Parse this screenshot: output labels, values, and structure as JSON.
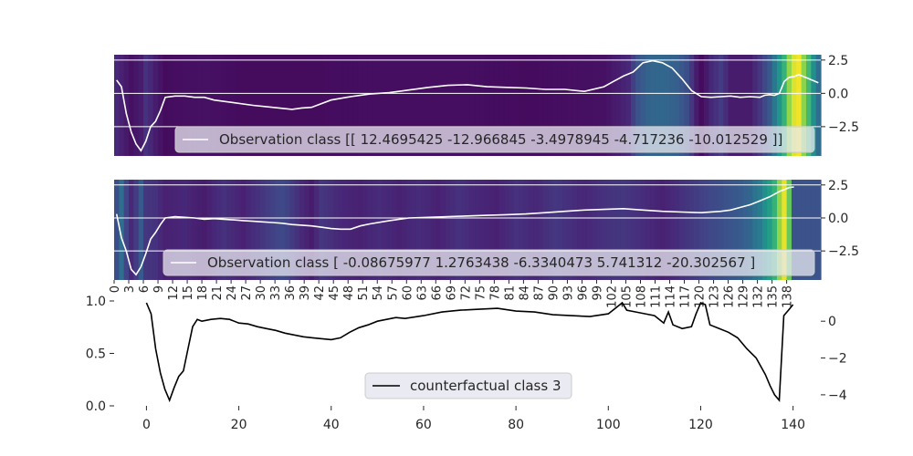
{
  "chart_data": [
    {
      "type": "line",
      "panel": "top heatmap",
      "colormap": "viridis",
      "y_ticks": [
        "2.5",
        "0.0",
        "−2.5"
      ],
      "ylim": [
        -4.7,
        2.9
      ],
      "y_axis_side": "right",
      "grid": true,
      "legend": {
        "location": "lower-right",
        "entries": [
          "Observation class [[ 12.4695425 -12.966845    -3.4978945   -4.717236   -10.012529  ]]"
        ]
      },
      "heat": [
        [
          0,
          0.14
        ],
        [
          1,
          0.12
        ],
        [
          3,
          0.06
        ],
        [
          5,
          0.1
        ],
        [
          6,
          0.18
        ],
        [
          8,
          0.1
        ],
        [
          10,
          0.04
        ],
        [
          13,
          0.05
        ],
        [
          18,
          0.06
        ],
        [
          25,
          0.04
        ],
        [
          40,
          0.04
        ],
        [
          55,
          0.05
        ],
        [
          70,
          0.05
        ],
        [
          85,
          0.04
        ],
        [
          100,
          0.06
        ],
        [
          105,
          0.14
        ],
        [
          107,
          0.32
        ],
        [
          109,
          0.4
        ],
        [
          112,
          0.42
        ],
        [
          115,
          0.38
        ],
        [
          117,
          0.3
        ],
        [
          119,
          0.1
        ],
        [
          120,
          0.04
        ],
        [
          122,
          0.14
        ],
        [
          124,
          0.22
        ],
        [
          126,
          0.1
        ],
        [
          130,
          0.1
        ],
        [
          132,
          0.2
        ],
        [
          134,
          0.35
        ],
        [
          135,
          0.5
        ],
        [
          136,
          0.65
        ],
        [
          137,
          0.78
        ],
        [
          138,
          0.9
        ],
        [
          139,
          0.97
        ],
        [
          140,
          0.99
        ],
        [
          142,
          0.8
        ],
        [
          144,
          0.45
        ]
      ],
      "series": [
        {
          "x": [
            0,
            1,
            2,
            3,
            4,
            5,
            6,
            7,
            8,
            9,
            10,
            12,
            14,
            16,
            18,
            20,
            24,
            28,
            32,
            36,
            38,
            40,
            44,
            48,
            52,
            56,
            60,
            64,
            68,
            72,
            76,
            80,
            84,
            88,
            92,
            96,
            100,
            102,
            103,
            104,
            106,
            108,
            110,
            112,
            114,
            116,
            118,
            120,
            122,
            124,
            126,
            128,
            130,
            132,
            133,
            134,
            135,
            136,
            137,
            138,
            139,
            140,
            142,
            144
          ],
          "y": [
            1,
            0.5,
            -1.5,
            -2.9,
            -3.8,
            -4.3,
            -3.6,
            -2.5,
            -2.1,
            -1.3,
            -0.3,
            -0.2,
            -0.2,
            -0.3,
            -0.3,
            -0.5,
            -0.7,
            -0.9,
            -1.05,
            -1.2,
            -1.1,
            -1.05,
            -0.5,
            -0.25,
            -0.05,
            0.05,
            0.25,
            0.45,
            0.6,
            0.65,
            0.5,
            0.45,
            0.4,
            0.3,
            0.3,
            0.15,
            0.5,
            0.9,
            1.1,
            1.3,
            1.6,
            2.3,
            2.45,
            2.3,
            1.9,
            1.1,
            0.2,
            -0.25,
            -0.3,
            -0.25,
            -0.2,
            -0.3,
            -0.25,
            -0.3,
            -0.15,
            -0.1,
            -0.15,
            0.0,
            0.9,
            1.2,
            1.25,
            1.4,
            1.1,
            0.8
          ]
        }
      ]
    },
    {
      "type": "line",
      "panel": "middle heatmap",
      "colormap": "viridis",
      "x_ticks": [
        "0",
        "3",
        "6",
        "9",
        "12",
        "15",
        "18",
        "21",
        "24",
        "27",
        "30",
        "33",
        "36",
        "39",
        "42",
        "45",
        "48",
        "51",
        "54",
        "57",
        "60",
        "63",
        "66",
        "69",
        "72",
        "75",
        "78",
        "81",
        "84",
        "87",
        "90",
        "93",
        "96",
        "99",
        "102",
        "105",
        "108",
        "111",
        "114",
        "117",
        "120",
        "123",
        "126",
        "129",
        "132",
        "135",
        "138"
      ],
      "y_ticks": [
        "2.5",
        "0.0",
        "−2.5"
      ],
      "ylim": [
        -4.7,
        2.9
      ],
      "y_axis_side": "right",
      "grid": true,
      "legend": {
        "location": "lower-right",
        "entries": [
          "Observation class [ -0.08675977   1.2763438    -6.3340473     5.741312     -20.302567   ]"
        ]
      },
      "heat": [
        [
          0,
          0.3
        ],
        [
          1,
          0.45
        ],
        [
          2,
          0.25
        ],
        [
          3,
          0.15
        ],
        [
          4,
          0.22
        ],
        [
          5,
          0.35
        ],
        [
          6,
          0.2
        ],
        [
          8,
          0.18
        ],
        [
          10,
          0.12
        ],
        [
          14,
          0.14
        ],
        [
          18,
          0.1
        ],
        [
          22,
          0.18
        ],
        [
          26,
          0.12
        ],
        [
          30,
          0.2
        ],
        [
          34,
          0.28
        ],
        [
          38,
          0.15
        ],
        [
          40,
          0.1
        ],
        [
          42,
          0.2
        ],
        [
          46,
          0.14
        ],
        [
          50,
          0.12
        ],
        [
          54,
          0.16
        ],
        [
          58,
          0.12
        ],
        [
          62,
          0.16
        ],
        [
          66,
          0.12
        ],
        [
          70,
          0.18
        ],
        [
          74,
          0.14
        ],
        [
          78,
          0.12
        ],
        [
          82,
          0.18
        ],
        [
          86,
          0.14
        ],
        [
          90,
          0.2
        ],
        [
          94,
          0.16
        ],
        [
          96,
          0.14
        ],
        [
          100,
          0.18
        ],
        [
          104,
          0.2
        ],
        [
          108,
          0.16
        ],
        [
          112,
          0.12
        ],
        [
          116,
          0.18
        ],
        [
          120,
          0.24
        ],
        [
          124,
          0.3
        ],
        [
          128,
          0.36
        ],
        [
          130,
          0.42
        ],
        [
          132,
          0.52
        ],
        [
          133,
          0.62
        ],
        [
          134,
          0.7
        ],
        [
          135,
          0.78
        ],
        [
          136,
          0.9
        ],
        [
          137,
          0.98
        ],
        [
          138,
          0.85
        ],
        [
          139,
          0.32
        ]
      ],
      "series": [
        {
          "x": [
            0,
            1,
            2,
            3,
            4,
            5,
            6,
            7,
            8,
            9,
            10,
            11,
            12,
            14,
            16,
            18,
            20,
            22,
            24,
            26,
            28,
            30,
            32,
            34,
            36,
            38,
            40,
            42,
            44,
            46,
            48,
            50,
            52,
            56,
            60,
            64,
            68,
            72,
            76,
            80,
            84,
            88,
            92,
            96,
            100,
            104,
            108,
            112,
            116,
            120,
            124,
            126,
            128,
            130,
            132,
            134,
            135,
            136,
            137,
            138,
            139
          ],
          "y": [
            0.3,
            -1.5,
            -2.5,
            -3.9,
            -4.3,
            -3.7,
            -2.7,
            -1.6,
            -1.1,
            -0.5,
            0,
            0.05,
            0.1,
            0.05,
            0,
            -0.1,
            -0.05,
            -0.1,
            -0.15,
            -0.2,
            -0.25,
            -0.3,
            -0.35,
            -0.4,
            -0.5,
            -0.55,
            -0.6,
            -0.7,
            -0.8,
            -0.85,
            -0.85,
            -0.6,
            -0.45,
            -0.2,
            0,
            0.05,
            0.1,
            0.15,
            0.2,
            0.25,
            0.3,
            0.4,
            0.5,
            0.6,
            0.65,
            0.7,
            0.6,
            0.5,
            0.45,
            0.4,
            0.5,
            0.6,
            0.8,
            1.0,
            1.3,
            1.6,
            1.8,
            2.0,
            2.15,
            2.3,
            2.35
          ]
        }
      ]
    },
    {
      "type": "line",
      "panel": "bottom",
      "x_ticks": [
        "0",
        "20",
        "40",
        "60",
        "80",
        "100",
        "120",
        "140"
      ],
      "xlim": [
        -7,
        146
      ],
      "left_y_ticks": [
        "0.0",
        "0.5",
        "1.0"
      ],
      "left_ylim": [
        0,
        1.0
      ],
      "right_y_ticks": [
        "0",
        "−2",
        "−4"
      ],
      "right_ylim": [
        -4.6,
        1.1
      ],
      "grid": false,
      "legend": {
        "location": "lower-center",
        "entries": [
          "counterfactual class 3"
        ]
      },
      "series": [
        {
          "name": "counterfactual class 3",
          "color": "#000000",
          "x": [
            0,
            1,
            2,
            3,
            4,
            5,
            6,
            7,
            8,
            9,
            10,
            11,
            12,
            14,
            16,
            18,
            20,
            22,
            24,
            26,
            28,
            30,
            32,
            34,
            36,
            38,
            40,
            42,
            44,
            46,
            48,
            50,
            52,
            54,
            56,
            60,
            64,
            68,
            72,
            76,
            80,
            84,
            88,
            92,
            96,
            100,
            102,
            103,
            104,
            106,
            108,
            110,
            112,
            113,
            114,
            116,
            118,
            119,
            120,
            121,
            122,
            124,
            126,
            128,
            130,
            132,
            134,
            135,
            136,
            137,
            138,
            139,
            140
          ],
          "y": [
            1,
            0.4,
            -1.5,
            -2.8,
            -3.7,
            -4.3,
            -3.6,
            -3.0,
            -2.7,
            -1.5,
            -0.3,
            0.1,
            0.0,
            0.1,
            0.15,
            0.1,
            -0.1,
            -0.15,
            -0.3,
            -0.4,
            -0.5,
            -0.65,
            -0.75,
            -0.85,
            -0.9,
            -0.95,
            -1.0,
            -0.9,
            -0.6,
            -0.35,
            -0.2,
            0.0,
            0.1,
            0.2,
            0.15,
            0.3,
            0.5,
            0.6,
            0.65,
            0.7,
            0.55,
            0.5,
            0.35,
            0.3,
            0.25,
            0.4,
            0.8,
            1.0,
            0.6,
            0.5,
            0.4,
            0.3,
            -0.1,
            0.5,
            -0.2,
            -0.4,
            -0.3,
            0.4,
            1.0,
            0.9,
            -0.2,
            -0.4,
            -0.6,
            -0.9,
            -1.5,
            -2.0,
            -2.9,
            -3.5,
            -4.0,
            -4.3,
            0.3,
            0.6,
            0.9
          ]
        }
      ]
    }
  ]
}
